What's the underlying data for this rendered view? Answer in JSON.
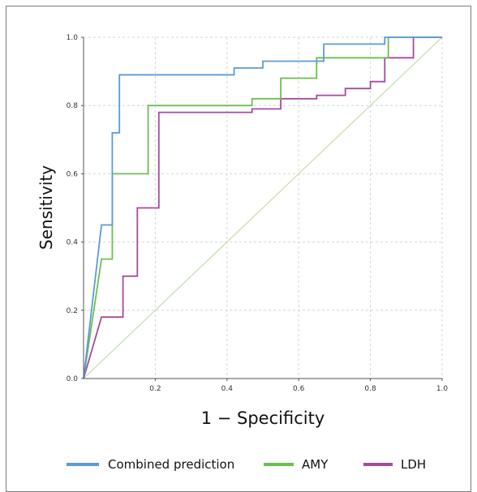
{
  "chart_data": {
    "type": "line",
    "title": "",
    "xlabel": "1 − Specificity",
    "ylabel": "Sensitivity",
    "xlim": [
      0,
      1
    ],
    "ylim": [
      0,
      1
    ],
    "x_ticks": [
      "0.2",
      "0.4",
      "0.6",
      "0.8",
      "1.0"
    ],
    "y_ticks": [
      "0.0",
      "0.2",
      "0.4",
      "0.6",
      "0.8",
      "1.0"
    ],
    "grid": true,
    "legend_position": "bottom",
    "reference_line": {
      "points": [
        [
          0,
          0
        ],
        [
          1,
          1
        ]
      ],
      "color": "#c8dfb4"
    },
    "series": [
      {
        "name": "Combined prediction",
        "color": "#5b9bd5",
        "points": [
          [
            0,
            0
          ],
          [
            0.05,
            0.45
          ],
          [
            0.08,
            0.45
          ],
          [
            0.08,
            0.72
          ],
          [
            0.1,
            0.72
          ],
          [
            0.1,
            0.89
          ],
          [
            0.42,
            0.89
          ],
          [
            0.42,
            0.91
          ],
          [
            0.5,
            0.91
          ],
          [
            0.5,
            0.93
          ],
          [
            0.67,
            0.93
          ],
          [
            0.67,
            0.98
          ],
          [
            0.84,
            0.98
          ],
          [
            0.84,
            1.0
          ],
          [
            1.0,
            1.0
          ]
        ]
      },
      {
        "name": "AMY",
        "color": "#6ac04e",
        "points": [
          [
            0,
            0
          ],
          [
            0.05,
            0.35
          ],
          [
            0.08,
            0.35
          ],
          [
            0.08,
            0.6
          ],
          [
            0.18,
            0.6
          ],
          [
            0.18,
            0.8
          ],
          [
            0.47,
            0.8
          ],
          [
            0.47,
            0.82
          ],
          [
            0.55,
            0.82
          ],
          [
            0.55,
            0.88
          ],
          [
            0.65,
            0.88
          ],
          [
            0.65,
            0.94
          ],
          [
            0.85,
            0.94
          ],
          [
            0.85,
            1.0
          ],
          [
            1.0,
            1.0
          ]
        ]
      },
      {
        "name": "LDH",
        "color": "#a64a9e",
        "points": [
          [
            0,
            0
          ],
          [
            0.05,
            0.18
          ],
          [
            0.11,
            0.18
          ],
          [
            0.11,
            0.3
          ],
          [
            0.15,
            0.3
          ],
          [
            0.15,
            0.5
          ],
          [
            0.21,
            0.5
          ],
          [
            0.21,
            0.78
          ],
          [
            0.47,
            0.78
          ],
          [
            0.47,
            0.79
          ],
          [
            0.55,
            0.79
          ],
          [
            0.55,
            0.82
          ],
          [
            0.65,
            0.82
          ],
          [
            0.65,
            0.83
          ],
          [
            0.73,
            0.83
          ],
          [
            0.73,
            0.85
          ],
          [
            0.8,
            0.85
          ],
          [
            0.8,
            0.87
          ],
          [
            0.84,
            0.87
          ],
          [
            0.84,
            0.94
          ],
          [
            0.92,
            0.94
          ],
          [
            0.92,
            1.0
          ],
          [
            1.0,
            1.0
          ]
        ]
      }
    ]
  }
}
